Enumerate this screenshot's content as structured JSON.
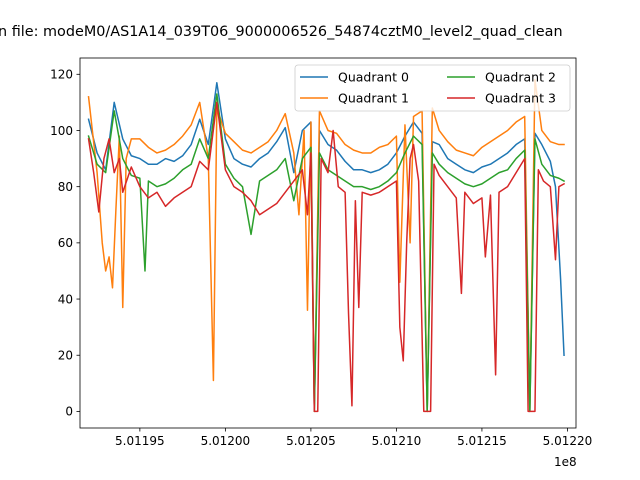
{
  "chart_data": {
    "type": "line",
    "title": "n file: modeM0/AS1A14_039T06_9000006526_54874cztM0_level2_quad_clean",
    "xlabel": "",
    "ylabel": "",
    "x_offset_label": "1e8",
    "xlim": [
      5.011915,
      5.012205
    ],
    "ylim": [
      -5.9,
      125.8
    ],
    "x_ticks": [
      5.01195,
      5.012,
      5.01205,
      5.0121,
      5.01215,
      5.0122
    ],
    "x_tick_labels": [
      "5.01195",
      "5.01200",
      "5.01205",
      "5.01210",
      "5.01215",
      "5.01220"
    ],
    "y_ticks": [
      0,
      20,
      40,
      60,
      80,
      100,
      120
    ],
    "y_tick_labels": [
      "0",
      "20",
      "40",
      "60",
      "80",
      "100",
      "120"
    ],
    "legend_position": "top-right",
    "series": [
      {
        "name": "Quadrant 0",
        "color": "#1f77b4",
        "points": [
          [
            5.01192,
            104
          ],
          [
            5.011925,
            92
          ],
          [
            5.01193,
            86
          ],
          [
            5.011935,
            110
          ],
          [
            5.01194,
            97
          ],
          [
            5.011945,
            91
          ],
          [
            5.01195,
            90
          ],
          [
            5.011955,
            88
          ],
          [
            5.01196,
            88
          ],
          [
            5.011965,
            90
          ],
          [
            5.01197,
            89
          ],
          [
            5.011975,
            91
          ],
          [
            5.01198,
            95
          ],
          [
            5.011985,
            104
          ],
          [
            5.01199,
            95
          ],
          [
            5.011995,
            117
          ],
          [
            5.012,
            97
          ],
          [
            5.012005,
            90
          ],
          [
            5.01201,
            88
          ],
          [
            5.012015,
            87
          ],
          [
            5.01202,
            90
          ],
          [
            5.012025,
            92
          ],
          [
            5.01203,
            96
          ],
          [
            5.012035,
            101
          ],
          [
            5.01204,
            85
          ],
          [
            5.012045,
            100
          ],
          [
            5.01205,
            103
          ],
          [
            5.012052,
            0
          ],
          [
            5.012055,
            100
          ],
          [
            5.01206,
            95
          ],
          [
            5.012065,
            93
          ],
          [
            5.01207,
            89
          ],
          [
            5.012075,
            86
          ],
          [
            5.01208,
            86
          ],
          [
            5.012085,
            85
          ],
          [
            5.01209,
            86
          ],
          [
            5.012095,
            88
          ],
          [
            5.0121,
            92
          ],
          [
            5.012105,
            98
          ],
          [
            5.01211,
            103
          ],
          [
            5.012115,
            99
          ],
          [
            5.012118,
            0
          ],
          [
            5.012121,
            96
          ],
          [
            5.012125,
            95
          ],
          [
            5.01213,
            90
          ],
          [
            5.012135,
            88
          ],
          [
            5.01214,
            86
          ],
          [
            5.012145,
            85
          ],
          [
            5.01215,
            87
          ],
          [
            5.012155,
            88
          ],
          [
            5.01216,
            90
          ],
          [
            5.012165,
            92
          ],
          [
            5.01217,
            95
          ],
          [
            5.012175,
            97
          ],
          [
            5.012178,
            0
          ],
          [
            5.012181,
            99
          ],
          [
            5.012185,
            95
          ],
          [
            5.01219,
            89
          ],
          [
            5.012193,
            80
          ],
          [
            5.012196,
            47
          ],
          [
            5.012198,
            20
          ]
        ]
      },
      {
        "name": "Quadrant 1",
        "color": "#ff7f0e",
        "points": [
          [
            5.01192,
            112
          ],
          [
            5.011925,
            85
          ],
          [
            5.011928,
            60
          ],
          [
            5.01193,
            50
          ],
          [
            5.011932,
            55
          ],
          [
            5.011934,
            44
          ],
          [
            5.011936,
            72
          ],
          [
            5.011938,
            98
          ],
          [
            5.01194,
            37
          ],
          [
            5.011942,
            90
          ],
          [
            5.011945,
            97
          ],
          [
            5.01195,
            97
          ],
          [
            5.011955,
            94
          ],
          [
            5.01196,
            92
          ],
          [
            5.011965,
            93
          ],
          [
            5.01197,
            95
          ],
          [
            5.011975,
            98
          ],
          [
            5.01198,
            102
          ],
          [
            5.011985,
            110
          ],
          [
            5.01199,
            90
          ],
          [
            5.011993,
            11
          ],
          [
            5.011995,
            108
          ],
          [
            5.012,
            99
          ],
          [
            5.012005,
            96
          ],
          [
            5.01201,
            93
          ],
          [
            5.012015,
            92
          ],
          [
            5.01202,
            94
          ],
          [
            5.012025,
            96
          ],
          [
            5.01203,
            100
          ],
          [
            5.012035,
            106
          ],
          [
            5.01204,
            92
          ],
          [
            5.012043,
            70
          ],
          [
            5.012046,
            100
          ],
          [
            5.012048,
            36
          ],
          [
            5.01205,
            103
          ],
          [
            5.012052,
            0
          ],
          [
            5.012055,
            107
          ],
          [
            5.01206,
            100
          ],
          [
            5.012065,
            99
          ],
          [
            5.01207,
            95
          ],
          [
            5.012075,
            93
          ],
          [
            5.01208,
            92
          ],
          [
            5.012085,
            92
          ],
          [
            5.01209,
            94
          ],
          [
            5.012095,
            95
          ],
          [
            5.0121,
            98
          ],
          [
            5.012102,
            46
          ],
          [
            5.012105,
            102
          ],
          [
            5.012108,
            60
          ],
          [
            5.01211,
            105
          ],
          [
            5.012115,
            107
          ],
          [
            5.012118,
            0
          ],
          [
            5.012121,
            108
          ],
          [
            5.012125,
            100
          ],
          [
            5.01213,
            96
          ],
          [
            5.012135,
            93
          ],
          [
            5.01214,
            92
          ],
          [
            5.012145,
            91
          ],
          [
            5.01215,
            94
          ],
          [
            5.012155,
            96
          ],
          [
            5.01216,
            98
          ],
          [
            5.012165,
            100
          ],
          [
            5.01217,
            103
          ],
          [
            5.012175,
            105
          ],
          [
            5.012178,
            0
          ],
          [
            5.012181,
            118
          ],
          [
            5.012185,
            100
          ],
          [
            5.01219,
            96
          ],
          [
            5.012195,
            95
          ],
          [
            5.012198,
            95
          ]
        ]
      },
      {
        "name": "Quadrant 2",
        "color": "#2ca02c",
        "points": [
          [
            5.01192,
            98
          ],
          [
            5.011925,
            88
          ],
          [
            5.01193,
            85
          ],
          [
            5.011935,
            107
          ],
          [
            5.01194,
            90
          ],
          [
            5.011945,
            84
          ],
          [
            5.01195,
            83
          ],
          [
            5.011953,
            50
          ],
          [
            5.011955,
            82
          ],
          [
            5.01196,
            80
          ],
          [
            5.011965,
            81
          ],
          [
            5.01197,
            83
          ],
          [
            5.011975,
            86
          ],
          [
            5.01198,
            88
          ],
          [
            5.011985,
            97
          ],
          [
            5.01199,
            90
          ],
          [
            5.011995,
            113
          ],
          [
            5.012,
            88
          ],
          [
            5.012005,
            83
          ],
          [
            5.01201,
            80
          ],
          [
            5.012015,
            63
          ],
          [
            5.01202,
            82
          ],
          [
            5.012025,
            84
          ],
          [
            5.01203,
            86
          ],
          [
            5.012035,
            90
          ],
          [
            5.01204,
            75
          ],
          [
            5.012045,
            90
          ],
          [
            5.01205,
            94
          ],
          [
            5.012052,
            0
          ],
          [
            5.012055,
            92
          ],
          [
            5.01206,
            86
          ],
          [
            5.012065,
            84
          ],
          [
            5.01207,
            82
          ],
          [
            5.012075,
            80
          ],
          [
            5.01208,
            80
          ],
          [
            5.012085,
            79
          ],
          [
            5.01209,
            80
          ],
          [
            5.012095,
            82
          ],
          [
            5.0121,
            85
          ],
          [
            5.012105,
            92
          ],
          [
            5.01211,
            98
          ],
          [
            5.012115,
            95
          ],
          [
            5.012118,
            0
          ],
          [
            5.012121,
            92
          ],
          [
            5.012125,
            88
          ],
          [
            5.01213,
            85
          ],
          [
            5.012135,
            83
          ],
          [
            5.01214,
            81
          ],
          [
            5.012145,
            80
          ],
          [
            5.01215,
            81
          ],
          [
            5.012155,
            83
          ],
          [
            5.01216,
            85
          ],
          [
            5.012165,
            86
          ],
          [
            5.01217,
            90
          ],
          [
            5.012175,
            93
          ],
          [
            5.012178,
            0
          ],
          [
            5.012181,
            97
          ],
          [
            5.012185,
            88
          ],
          [
            5.01219,
            84
          ],
          [
            5.012195,
            83
          ],
          [
            5.012198,
            82
          ]
        ]
      },
      {
        "name": "Quadrant 3",
        "color": "#d62728",
        "points": [
          [
            5.01192,
            97
          ],
          [
            5.011923,
            85
          ],
          [
            5.011926,
            71
          ],
          [
            5.011929,
            90
          ],
          [
            5.011932,
            97
          ],
          [
            5.011935,
            85
          ],
          [
            5.011938,
            90
          ],
          [
            5.01194,
            78
          ],
          [
            5.011945,
            87
          ],
          [
            5.01195,
            80
          ],
          [
            5.011955,
            76
          ],
          [
            5.01196,
            78
          ],
          [
            5.011965,
            73
          ],
          [
            5.01197,
            76
          ],
          [
            5.011975,
            78
          ],
          [
            5.01198,
            80
          ],
          [
            5.011985,
            89
          ],
          [
            5.01199,
            86
          ],
          [
            5.011995,
            110
          ],
          [
            5.012,
            86
          ],
          [
            5.012005,
            80
          ],
          [
            5.01201,
            78
          ],
          [
            5.012015,
            75
          ],
          [
            5.01202,
            70
          ],
          [
            5.012025,
            72
          ],
          [
            5.01203,
            74
          ],
          [
            5.012035,
            78
          ],
          [
            5.01204,
            82
          ],
          [
            5.012045,
            86
          ],
          [
            5.012048,
            70
          ],
          [
            5.01205,
            92
          ],
          [
            5.012052,
            0
          ],
          [
            5.012054,
            0
          ],
          [
            5.012056,
            90
          ],
          [
            5.01206,
            85
          ],
          [
            5.012063,
            100
          ],
          [
            5.012066,
            80
          ],
          [
            5.01207,
            78
          ],
          [
            5.012072,
            35
          ],
          [
            5.012074,
            2
          ],
          [
            5.012076,
            75
          ],
          [
            5.012078,
            37
          ],
          [
            5.01208,
            78
          ],
          [
            5.012085,
            77
          ],
          [
            5.01209,
            78
          ],
          [
            5.012095,
            80
          ],
          [
            5.0121,
            82
          ],
          [
            5.012102,
            30
          ],
          [
            5.012104,
            18
          ],
          [
            5.012106,
            60
          ],
          [
            5.012108,
            90
          ],
          [
            5.01211,
            95
          ],
          [
            5.012113,
            82
          ],
          [
            5.012116,
            0
          ],
          [
            5.012118,
            0
          ],
          [
            5.01212,
            0
          ],
          [
            5.012122,
            88
          ],
          [
            5.012125,
            84
          ],
          [
            5.01213,
            80
          ],
          [
            5.012135,
            76
          ],
          [
            5.012138,
            42
          ],
          [
            5.01214,
            78
          ],
          [
            5.012145,
            74
          ],
          [
            5.01215,
            76
          ],
          [
            5.012152,
            55
          ],
          [
            5.012155,
            77
          ],
          [
            5.012158,
            13
          ],
          [
            5.01216,
            78
          ],
          [
            5.012165,
            80
          ],
          [
            5.01217,
            85
          ],
          [
            5.012175,
            90
          ],
          [
            5.012177,
            0
          ],
          [
            5.012179,
            0
          ],
          [
            5.012181,
            0
          ],
          [
            5.012183,
            86
          ],
          [
            5.012186,
            82
          ],
          [
            5.01219,
            80
          ],
          [
            5.012193,
            54
          ],
          [
            5.012195,
            80
          ],
          [
            5.012198,
            81
          ]
        ]
      }
    ]
  }
}
